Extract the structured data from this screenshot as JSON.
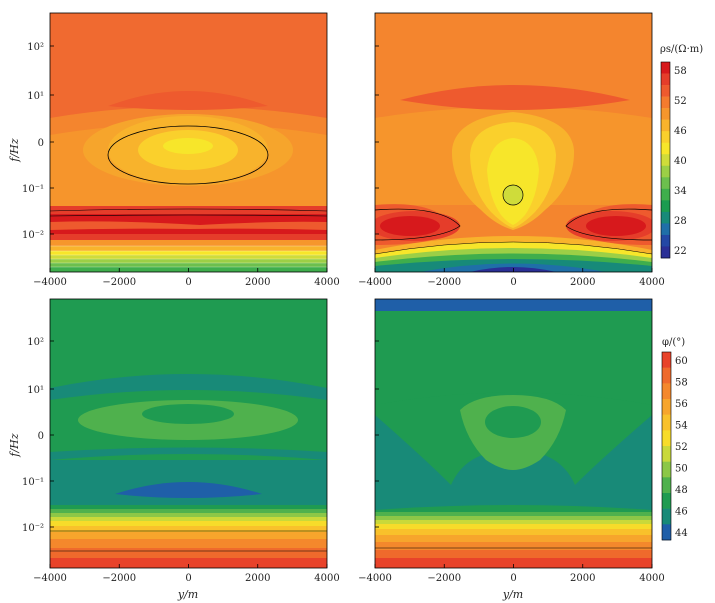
{
  "chart_data": [
    {
      "type": "heatmap",
      "panel": "top-left",
      "quantity": "rho_s",
      "x": [
        -4000,
        -2000,
        0,
        2000,
        4000
      ],
      "xlim": [
        -4000,
        4000
      ],
      "ylabel": "f/Hz",
      "ytick_labels": [
        "10²",
        "10¹",
        "0",
        "10⁻¹",
        "10⁻²"
      ],
      "xtick_labels": [
        "−4000",
        "−2000",
        "0",
        "2000",
        "4000"
      ],
      "colormap": "rainbow",
      "approx_range": [
        22,
        58
      ]
    },
    {
      "type": "heatmap",
      "panel": "top-right",
      "quantity": "rho_s",
      "x": [
        -4000,
        -2000,
        0,
        2000,
        4000
      ],
      "xlim": [
        -4000,
        4000
      ],
      "xtick_labels": [
        "−4000",
        "−2000",
        "0",
        "2000",
        "4000"
      ],
      "colorbar": {
        "label": "ρs/(Ω·m)",
        "ticks": [
          58,
          52,
          46,
          40,
          34,
          28,
          22
        ],
        "colors": [
          "#d7191c",
          "#e53d2a",
          "#ee5a2e",
          "#f47b2e",
          "#f6962c",
          "#f8b32c",
          "#fad02c",
          "#f7e62a",
          "#cfdc3a",
          "#9ccf46",
          "#6cbf4d",
          "#3fae4c",
          "#1a9c50",
          "#178a79",
          "#1f6fa8",
          "#2348a5",
          "#2a2f96"
        ]
      }
    },
    {
      "type": "heatmap",
      "panel": "bottom-left",
      "quantity": "phi",
      "x": [
        -4000,
        -2000,
        0,
        2000,
        4000
      ],
      "xlim": [
        -4000,
        4000
      ],
      "xlabel": "y/m",
      "ylabel": "f/Hz",
      "ytick_labels": [
        "10²",
        "10¹",
        "0",
        "10⁻¹",
        "10⁻²"
      ],
      "xtick_labels": [
        "−4000",
        "−2000",
        "0",
        "2000",
        "4000"
      ]
    },
    {
      "type": "heatmap",
      "panel": "bottom-right",
      "quantity": "phi",
      "x": [
        -4000,
        -2000,
        0,
        2000,
        4000
      ],
      "xlim": [
        -4000,
        4000
      ],
      "xlabel": "y/m",
      "xtick_labels": [
        "−4000",
        "−2000",
        "0",
        "2000",
        "4000"
      ],
      "colorbar": {
        "label": "φ/(°)",
        "ticks": [
          60,
          58,
          56,
          54,
          52,
          50,
          48,
          46,
          44
        ],
        "colors": [
          "#e8432a",
          "#ef6a2c",
          "#f4882c",
          "#f7a52c",
          "#f9c12b",
          "#f7dc2a",
          "#c9d93a",
          "#8cc747",
          "#4fb14d",
          "#1f9b51",
          "#188a78",
          "#1f5fa8"
        ]
      }
    }
  ],
  "labels": {
    "ylabel": "f/Hz",
    "xlabel": "y/m",
    "cb1": "ρs/(Ω·m)",
    "cb2": "φ/(°)"
  }
}
